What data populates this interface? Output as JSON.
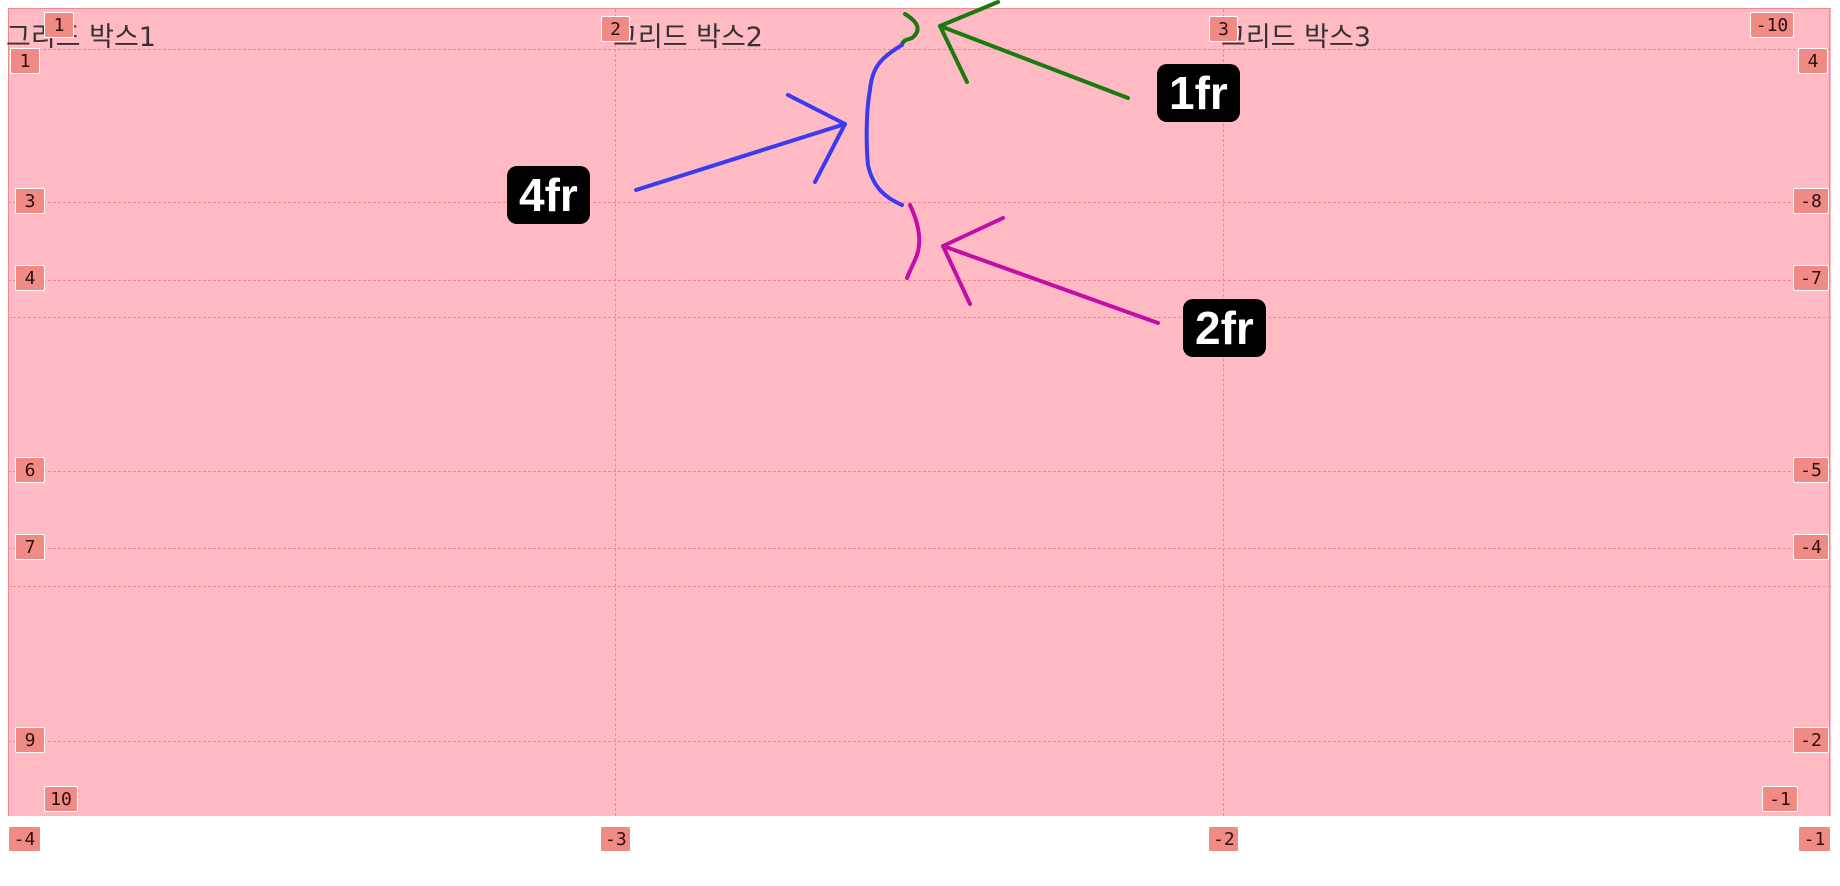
{
  "cells": [
    {
      "id": "c1",
      "title": "그리드 박스1"
    },
    {
      "id": "c2",
      "title": "그리드 박스2"
    },
    {
      "id": "c3",
      "title": "그리드 박스3"
    }
  ],
  "column_line_numbers": {
    "top": [
      "1",
      "2",
      "3",
      "-10"
    ],
    "bottom": [
      "-4",
      "-3",
      "-2",
      "-1"
    ]
  },
  "row_line_numbers": {
    "left": [
      "1",
      "3",
      "4",
      "6",
      "7",
      "9"
    ],
    "right": [
      "4",
      "-8",
      "-7",
      "-5",
      "-4",
      "-2"
    ],
    "first_top": "1",
    "last_left": "10",
    "last_right": "-1"
  },
  "annotations": [
    {
      "id": "one",
      "text": "1fr",
      "color": "#1a7a12"
    },
    {
      "id": "four",
      "text": "4fr",
      "color": "#3a3af0"
    },
    {
      "id": "two",
      "text": "2fr",
      "color": "#c20ea6"
    }
  ],
  "colors": {
    "grid_background": "#ffbac4",
    "grid_line": "#f08a8a",
    "badge": "#f08a84"
  }
}
